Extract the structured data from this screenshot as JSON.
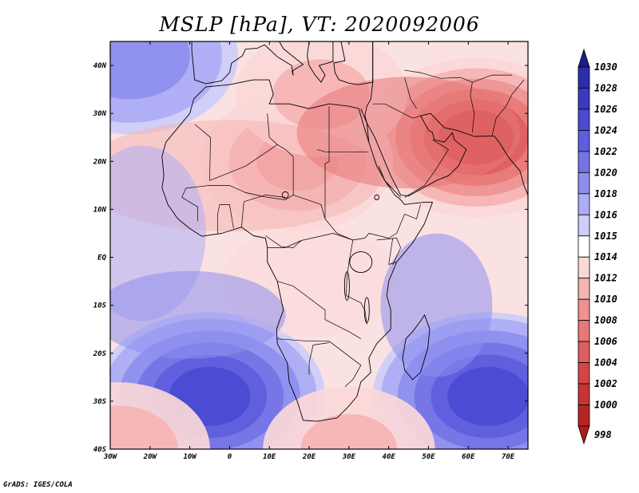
{
  "title": "MSLP [hPa], VT: 2020092006",
  "credit": "GrADS: IGES/COLA",
  "units": "hPa",
  "valid_time": "2020092006",
  "lon_range": [
    -30,
    75
  ],
  "lat_range": [
    -40,
    45
  ],
  "x_ticks": [
    {
      "lon": -30,
      "label": "30W"
    },
    {
      "lon": -20,
      "label": "20W"
    },
    {
      "lon": -10,
      "label": "10W"
    },
    {
      "lon": 0,
      "label": "0"
    },
    {
      "lon": 10,
      "label": "10E"
    },
    {
      "lon": 20,
      "label": "20E"
    },
    {
      "lon": 30,
      "label": "30E"
    },
    {
      "lon": 40,
      "label": "40E"
    },
    {
      "lon": 50,
      "label": "50E"
    },
    {
      "lon": 60,
      "label": "60E"
    },
    {
      "lon": 70,
      "label": "70E"
    }
  ],
  "y_ticks": [
    {
      "lat": 40,
      "label": "40N"
    },
    {
      "lat": 30,
      "label": "30N"
    },
    {
      "lat": 20,
      "label": "20N"
    },
    {
      "lat": 10,
      "label": "10N"
    },
    {
      "lat": 0,
      "label": "EQ"
    },
    {
      "lat": -10,
      "label": "10S"
    },
    {
      "lat": -20,
      "label": "20S"
    },
    {
      "lat": -30,
      "label": "30S"
    },
    {
      "lat": -40,
      "label": "40S"
    }
  ],
  "colorbar": {
    "top_arrow_color": "#1e1a8c",
    "bottom_arrow_color": "#b01c1c",
    "levels": [
      {
        "label": "1030",
        "color": "#22209a"
      },
      {
        "label": "1028",
        "color": "#2c2cae"
      },
      {
        "label": "1026",
        "color": "#3a3ac2"
      },
      {
        "label": "1024",
        "color": "#4a4ad2"
      },
      {
        "label": "1022",
        "color": "#5e5ede"
      },
      {
        "label": "1020",
        "color": "#7474e6"
      },
      {
        "label": "1018",
        "color": "#8e8eee"
      },
      {
        "label": "1016",
        "color": "#adadf4"
      },
      {
        "label": "1015",
        "color": "#cdcdf8"
      },
      {
        "label": "1014",
        "color": "#ffffff"
      },
      {
        "label": "1012",
        "color": "#fbd8d8"
      },
      {
        "label": "1010",
        "color": "#f6b4b4"
      },
      {
        "label": "1008",
        "color": "#ee9292"
      },
      {
        "label": "1006",
        "color": "#e87878"
      },
      {
        "label": "1004",
        "color": "#de5e5e"
      },
      {
        "label": "1002",
        "color": "#d44646"
      },
      {
        "label": "1000",
        "color": "#c83434"
      },
      {
        "label": "998",
        "color": "#b82424"
      }
    ]
  },
  "field_features": [
    {
      "name": "high-south-atlantic",
      "lon": -5,
      "lat": -29,
      "value": 1025
    },
    {
      "name": "high-south-indian",
      "lon": 65,
      "lat": -29,
      "value": 1025
    },
    {
      "name": "high-north-atlantic",
      "lon": -25,
      "lat": 42,
      "value": 1019
    },
    {
      "name": "low-arabia",
      "lon": 62,
      "lat": 25,
      "value": 1001
    },
    {
      "name": "low-sahara",
      "lon": 17,
      "lat": 20,
      "value": 1008
    },
    {
      "name": "low-mediterranean",
      "lon": 23,
      "lat": 34,
      "value": 1010
    },
    {
      "name": "low-southern-ocean-west",
      "lon": -28,
      "lat": -40,
      "value": 1009
    },
    {
      "name": "low-southern-ocean-east",
      "lon": 30,
      "lat": -40,
      "value": 1010
    }
  ]
}
